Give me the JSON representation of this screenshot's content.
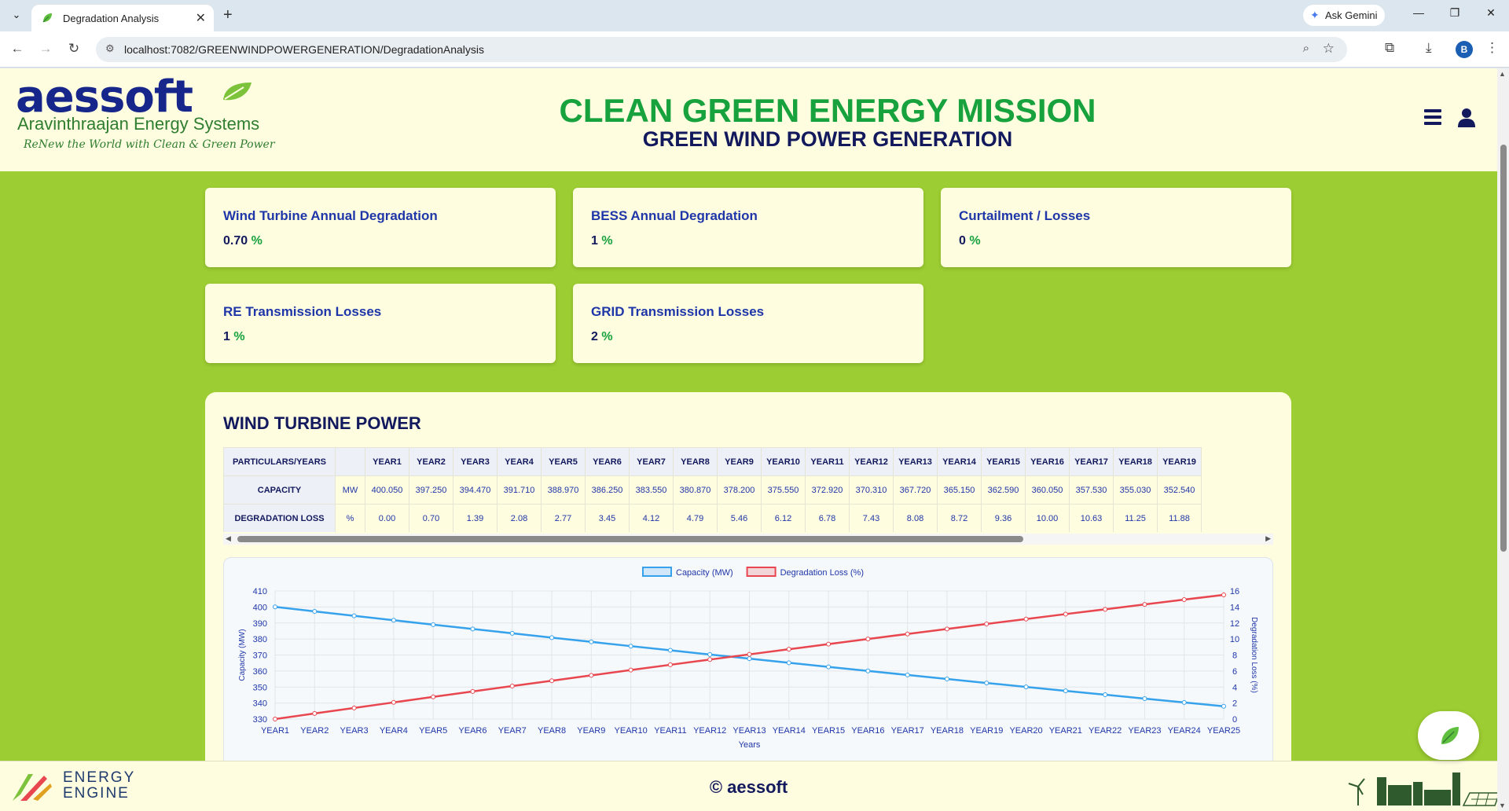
{
  "browser": {
    "tab_title": "Degradation Analysis",
    "url": "localhost:7082/GREENWINDPOWERGENERATION/DegradationAnalysis",
    "gemini_label": "Ask Gemini",
    "profile_initial": "B"
  },
  "header": {
    "logo_main": "aessoft",
    "logo_sub": "Aravinthraajan Energy Systems",
    "logo_tagline": "ReNew the World with Clean & Green Power",
    "mission": "CLEAN GREEN ENERGY MISSION",
    "subtitle": "GREEN WIND POWER GENERATION"
  },
  "cards": [
    {
      "title": "Wind Turbine Annual Degradation",
      "value": "0.70",
      "unit": "%"
    },
    {
      "title": "BESS Annual Degradation",
      "value": "1",
      "unit": "%"
    },
    {
      "title": "Curtailment / Losses",
      "value": "0",
      "unit": "%"
    },
    {
      "title": "RE Transmission Losses",
      "value": "1",
      "unit": "%"
    },
    {
      "title": "GRID Transmission Losses",
      "value": "2",
      "unit": "%"
    }
  ],
  "panel": {
    "title": "WIND TURBINE POWER",
    "table": {
      "header_label": "PARTICULARS/YEARS",
      "years": [
        "YEAR1",
        "YEAR2",
        "YEAR3",
        "YEAR4",
        "YEAR5",
        "YEAR6",
        "YEAR7",
        "YEAR8",
        "YEAR9",
        "YEAR10",
        "YEAR11",
        "YEAR12",
        "YEAR13",
        "YEAR14",
        "YEAR15",
        "YEAR16",
        "YEAR17",
        "YEAR18",
        "YEAR19"
      ],
      "rows": [
        {
          "label": "CAPACITY",
          "unit": "MW",
          "values": [
            "400.050",
            "397.250",
            "394.470",
            "391.710",
            "388.970",
            "386.250",
            "383.550",
            "380.870",
            "378.200",
            "375.550",
            "372.920",
            "370.310",
            "367.720",
            "365.150",
            "362.590",
            "360.050",
            "357.530",
            "355.030",
            "352.540"
          ]
        },
        {
          "label": "DEGRADATION LOSS",
          "unit": "%",
          "values": [
            "0.00",
            "0.70",
            "1.39",
            "2.08",
            "2.77",
            "3.45",
            "4.12",
            "4.79",
            "5.46",
            "6.12",
            "6.78",
            "7.43",
            "8.08",
            "8.72",
            "9.36",
            "10.00",
            "10.63",
            "11.25",
            "11.88"
          ]
        }
      ]
    }
  },
  "chart_data": {
    "type": "line",
    "x": [
      "YEAR1",
      "YEAR2",
      "YEAR3",
      "YEAR4",
      "YEAR5",
      "YEAR6",
      "YEAR7",
      "YEAR8",
      "YEAR9",
      "YEAR10",
      "YEAR11",
      "YEAR12",
      "YEAR13",
      "YEAR14",
      "YEAR15",
      "YEAR16",
      "YEAR17",
      "YEAR18",
      "YEAR19",
      "YEAR20",
      "YEAR21",
      "YEAR22",
      "YEAR23",
      "YEAR24",
      "YEAR25"
    ],
    "series": [
      {
        "name": "Capacity (MW)",
        "axis": "left",
        "color": "#36a2eb",
        "values": [
          400.05,
          397.25,
          394.47,
          391.71,
          388.97,
          386.25,
          383.55,
          380.87,
          378.2,
          375.55,
          372.92,
          370.31,
          367.72,
          365.15,
          362.59,
          360.05,
          357.53,
          355.03,
          352.54,
          350.07,
          347.62,
          345.19,
          342.77,
          340.37,
          337.99
        ]
      },
      {
        "name": "Degradation Loss (%)",
        "axis": "right",
        "color": "#e8474f",
        "values": [
          0,
          0.7,
          1.39,
          2.08,
          2.77,
          3.45,
          4.12,
          4.79,
          5.46,
          6.12,
          6.78,
          7.43,
          8.08,
          8.72,
          9.36,
          10,
          10.63,
          11.25,
          11.88,
          12.49,
          13.11,
          13.71,
          14.32,
          14.92,
          15.51
        ]
      }
    ],
    "xlabel": "Years",
    "ylabel_left": "Capacity (MW)",
    "ylabel_right": "Degradation Loss (%)",
    "ylim_left": [
      330,
      410
    ],
    "yticks_left": [
      330,
      340,
      350,
      360,
      370,
      380,
      390,
      400,
      410
    ],
    "ylim_right": [
      0,
      16
    ],
    "yticks_right": [
      0,
      2,
      4,
      6,
      8,
      10,
      12,
      14,
      16
    ],
    "grid": true,
    "legend": "top-center"
  },
  "footer": {
    "brand_line1": "ENERGY",
    "brand_line2": "ENGINE",
    "copyright": "© aessoft"
  }
}
